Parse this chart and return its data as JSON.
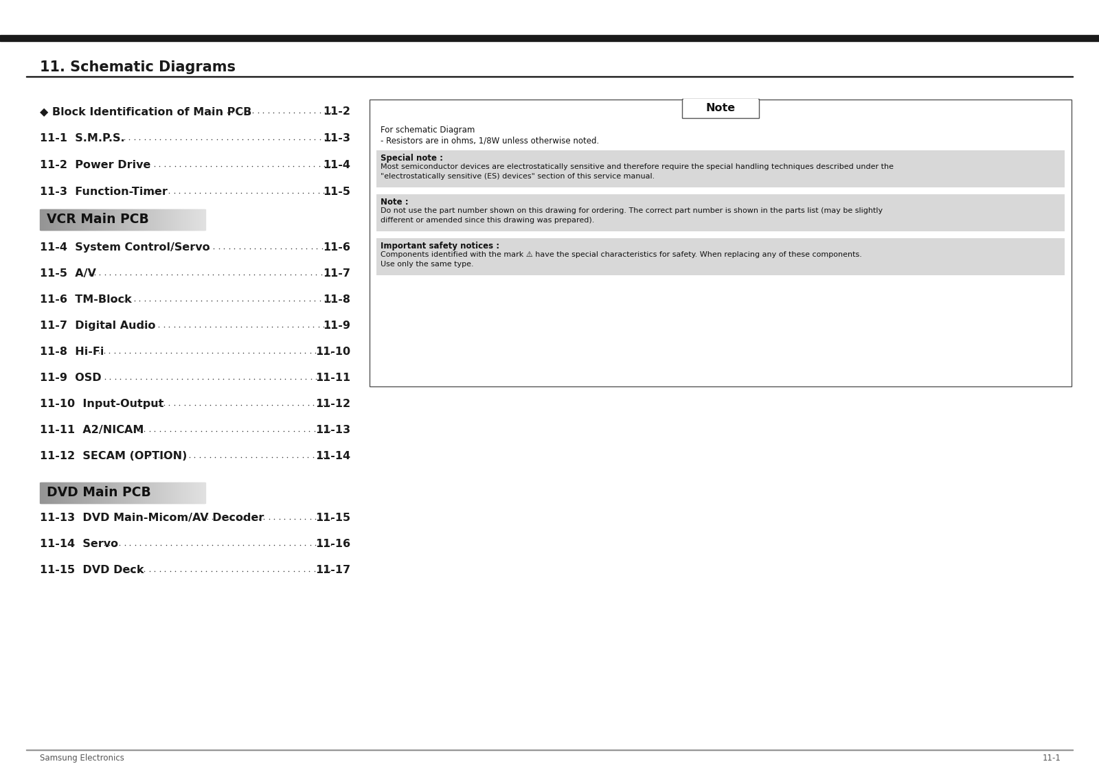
{
  "title": "11. Schematic Diagrams",
  "bg_color": "#ffffff",
  "page_label": "11-1",
  "footer_text": "Samsung Electronics",
  "toc_entries": [
    {
      "label": "◆ Block Identification of Main PCB",
      "page": "11-2"
    },
    {
      "label": "11-1  S.M.P.S.",
      "page": "11-3"
    },
    {
      "label": "11-2  Power Drive",
      "page": "11-4"
    },
    {
      "label": "11-3  Function-Timer",
      "page": "11-5"
    }
  ],
  "vcr_label": "VCR Main PCB",
  "vcr_entries": [
    {
      "label": "11-4  System Control/Servo",
      "page": "11-6"
    },
    {
      "label": "11-5  A/V",
      "page": "11-7"
    },
    {
      "label": "11-6  TM-Block",
      "page": "11-8"
    },
    {
      "label": "11-7  Digital Audio",
      "page": "11-9"
    },
    {
      "label": "11-8  Hi-Fi",
      "page": "11-10"
    },
    {
      "label": "11-9  OSD",
      "page": "11-11"
    },
    {
      "label": "11-10  Input-Output",
      "page": "11-12"
    },
    {
      "label": "11-11  A2/NICAM",
      "page": "11-13"
    },
    {
      "label": "11-12  SECAM (OPTION)",
      "page": "11-14"
    }
  ],
  "dvd_label": "DVD Main PCB",
  "dvd_entries": [
    {
      "label": "11-13  DVD Main-Micom/AV Decoder",
      "page": "11-15"
    },
    {
      "label": "11-14  Servo",
      "page": "11-16"
    },
    {
      "label": "11-15  DVD Deck",
      "page": "11-17"
    }
  ],
  "note_title": "Note",
  "note_intro": [
    "For schematic Diagram",
    "- Resistors are in ohms, 1/8W unless otherwise noted."
  ],
  "note_sections": [
    {
      "header": "Special note :",
      "lines": [
        "Most semiconductor devices are electrostatically sensitive and therefore require the special handling techniques described under the",
        "\"electrostatically sensitive (ES) devices\" section of this service manual."
      ]
    },
    {
      "header": "Note :",
      "lines": [
        "Do not use the part number shown on this drawing for ordering. The correct part number is shown in the parts list (may be slightly",
        "different or amended since this drawing was prepared)."
      ]
    },
    {
      "header": "Important safety notices :",
      "lines": [
        "Components identified with the mark ⚠ have the special characteristics for safety. When replacing any of these components.",
        "Use only the same type."
      ]
    }
  ]
}
